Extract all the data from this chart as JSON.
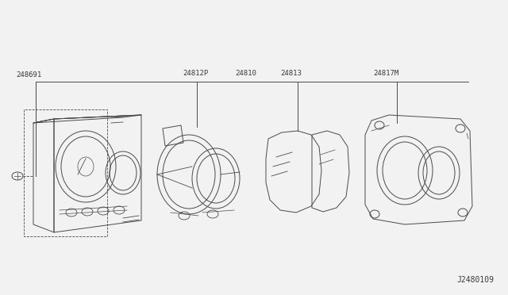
{
  "bg_color": "#f2f2f2",
  "line_color": "#4a4a4a",
  "text_color": "#3a3a3a",
  "diagram_id": "J2480109",
  "labels": {
    "top_center": "24810",
    "left1": "248691",
    "mid1": "24812P",
    "mid2": "24813",
    "right1": "24817M"
  },
  "line_width": 0.7,
  "font_size": 6.5
}
